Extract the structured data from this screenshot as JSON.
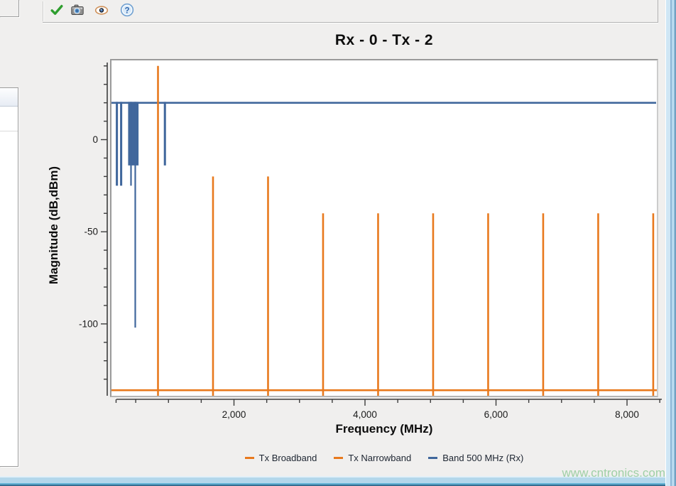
{
  "window": {
    "watermark": "www.cntronics.com"
  },
  "toolbar": {
    "icons": [
      "check-icon",
      "camera-icon",
      "eye-icon",
      "help-icon"
    ]
  },
  "chart_data": {
    "type": "line",
    "title": "Rx - 0 - Tx - 2",
    "xlabel": "Frequency (MHz)",
    "ylabel": "Magnitude (dB,dBm)",
    "xlim": [
      130,
      8455
    ],
    "ylim": [
      -139,
      43
    ],
    "grid": false,
    "legend_position": "bottom",
    "x_ticks": {
      "major": [
        {
          "v": 2000,
          "label": "2,000"
        },
        {
          "v": 4000,
          "label": "4,000"
        },
        {
          "v": 6000,
          "label": "6,000"
        },
        {
          "v": 8000,
          "label": "8,000"
        }
      ],
      "minor": [
        200,
        500,
        1000,
        1500,
        2500,
        3000,
        3500,
        4500,
        5000,
        5500,
        6500,
        7000,
        7500,
        8500
      ]
    },
    "y_ticks": {
      "major": [
        {
          "v": 0,
          "label": "0"
        },
        {
          "v": -50,
          "label": "-50"
        },
        {
          "v": -100,
          "label": "-100"
        }
      ],
      "minor": [
        40,
        30,
        20,
        10,
        -10,
        -20,
        -30,
        -40,
        -60,
        -70,
        -80,
        -90,
        -110,
        -120,
        -130
      ]
    },
    "series": [
      {
        "name": "Tx Broadband",
        "color": "#e8791d",
        "style": "hline",
        "level_dbm": -136
      },
      {
        "name": "Tx Narrowband",
        "color": "#e8791d",
        "style": "impulses",
        "points": [
          {
            "freq_mhz": 840,
            "level_dbm": 40
          },
          {
            "freq_mhz": 1680,
            "level_dbm": -20
          },
          {
            "freq_mhz": 2520,
            "level_dbm": -20
          },
          {
            "freq_mhz": 3360,
            "level_dbm": -40
          },
          {
            "freq_mhz": 4200,
            "level_dbm": -40
          },
          {
            "freq_mhz": 5040,
            "level_dbm": -40
          },
          {
            "freq_mhz": 5880,
            "level_dbm": -40
          },
          {
            "freq_mhz": 6720,
            "level_dbm": -40
          },
          {
            "freq_mhz": 7560,
            "level_dbm": -40
          },
          {
            "freq_mhz": 8400,
            "level_dbm": -40
          }
        ]
      },
      {
        "name": "Band 500 MHz (Rx)",
        "color": "#40679c",
        "style": "level-with-dips",
        "level_db": 20,
        "dips": [
          {
            "f0": 196,
            "f1": 229,
            "level_db": -25
          },
          {
            "f0": 261,
            "f1": 294,
            "level_db": -25
          },
          {
            "f0": 384,
            "f1": 543,
            "level_db": -14
          },
          {
            "f0": 416,
            "f1": 438,
            "level_db": -25
          },
          {
            "f0": 481,
            "f1": 503,
            "level_db": -102
          },
          {
            "f0": 929,
            "f1": 962,
            "level_db": -14
          }
        ]
      }
    ]
  }
}
